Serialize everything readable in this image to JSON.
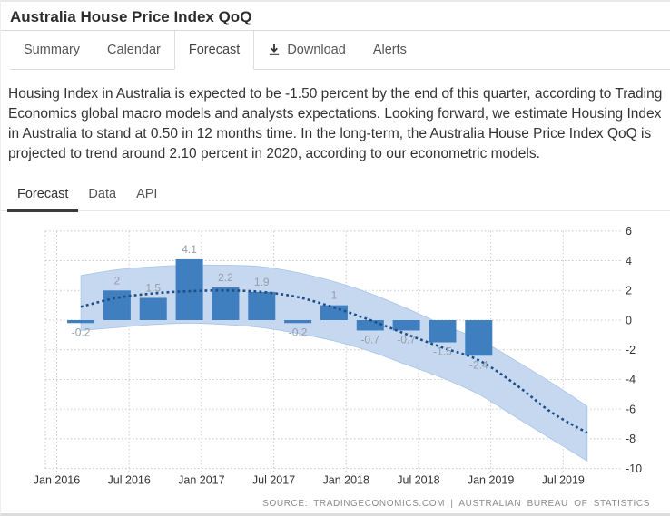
{
  "window": {
    "title": "Australia House Price Index QoQ"
  },
  "tabs": {
    "items": [
      {
        "label": "Summary",
        "active": false
      },
      {
        "label": "Calendar",
        "active": false
      },
      {
        "label": "Forecast",
        "active": true
      },
      {
        "label": "Download",
        "active": false,
        "icon": "download-icon"
      },
      {
        "label": "Alerts",
        "active": false
      }
    ]
  },
  "description": "Housing Index in Australia is expected to be -1.50 percent by the end of this quarter, according to Trading Economics global macro models and analysts expectations. Looking forward, we estimate Housing Index in Australia to stand at 0.50 in 12 months time. In the long-term, the Australia House Price Index QoQ is projected to trend around 2.10 percent in 2020, according to our econometric models.",
  "subtabs": {
    "items": [
      {
        "label": "Forecast",
        "active": true
      },
      {
        "label": "Data",
        "active": false
      },
      {
        "label": "API",
        "active": false
      }
    ]
  },
  "chart_data": {
    "type": "bar",
    "title": "Australia House Price Index QoQ forecast chart",
    "x_axis": {
      "tick_months": [
        0,
        6,
        12,
        18,
        24,
        30,
        36,
        42
      ],
      "tick_labels": [
        "Jan 2016",
        "Jul 2016",
        "Jan 2017",
        "Jul 2017",
        "Jan 2018",
        "Jul 2018",
        "Jan 2019",
        "Jul 2019"
      ]
    },
    "y_axis": {
      "ticks": [
        6,
        4,
        2,
        0,
        -2,
        -4,
        -6,
        -8,
        -10
      ],
      "ylim": [
        -10,
        6
      ]
    },
    "bars": {
      "months": [
        2,
        5,
        8,
        11,
        14,
        17,
        20,
        23,
        26,
        29,
        32,
        35
      ],
      "values": [
        -0.2,
        2,
        1.5,
        4.1,
        2.2,
        1.9,
        -0.2,
        1,
        -0.7,
        -0.7,
        -1.5,
        -2.4
      ],
      "labels": [
        "-0.2",
        "2",
        "1.5",
        "4.1",
        "2.2",
        "1.9",
        "-0.2",
        "1",
        "-0.7",
        "-0.7",
        "-1.5",
        "-2.4"
      ]
    },
    "forecast_line": {
      "months": [
        2,
        5,
        8,
        11,
        14,
        17,
        20,
        23,
        26,
        29,
        32,
        35,
        38,
        41,
        44
      ],
      "values": [
        0.9,
        1.5,
        1.8,
        1.95,
        2.0,
        1.9,
        1.55,
        0.85,
        0.0,
        -0.95,
        -1.85,
        -2.7,
        -4.3,
        -6.2,
        -7.6
      ]
    },
    "confidence_band": {
      "months": [
        2,
        5,
        8,
        11,
        14,
        17,
        20,
        23,
        26,
        29,
        32,
        35,
        38,
        41,
        44
      ],
      "upper": [
        3.0,
        3.4,
        3.6,
        3.7,
        3.7,
        3.6,
        3.2,
        2.6,
        1.8,
        0.8,
        -0.3,
        -1.3,
        -2.7,
        -4.2,
        -5.8
      ],
      "lower": [
        -0.7,
        -0.5,
        -0.3,
        -0.2,
        -0.3,
        -0.5,
        -0.9,
        -1.4,
        -2.1,
        -3.0,
        -3.9,
        -5.0,
        -6.5,
        -8.0,
        -9.5
      ]
    },
    "colors": {
      "bar": "#3f7ebf",
      "band": "#c5d8f0",
      "band_edge": "#a6c4e8",
      "line": "#1d4f87",
      "grid": "#c9c9c9",
      "bar_label": "#949ea9",
      "axis_label": "#333333"
    },
    "legend": "none",
    "grid": "dotted",
    "source": "SOURCE:  TRADINGECONOMICS.COM   |   AUSTRALIAN  BUREAU  OF  STATISTICS"
  }
}
